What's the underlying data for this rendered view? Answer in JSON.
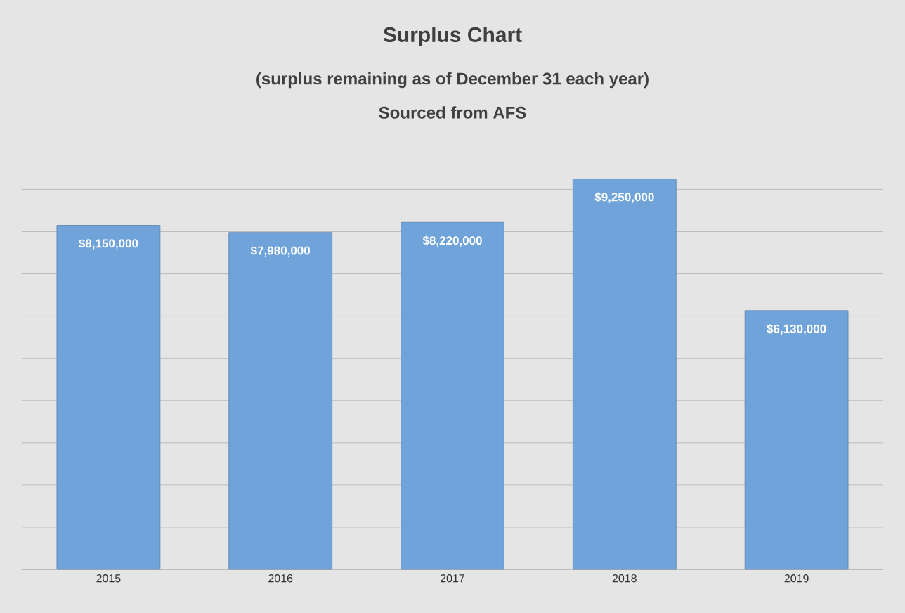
{
  "chart_data": {
    "type": "bar",
    "title": "Surplus Chart",
    "subtitle": "(surplus remaining as of December 31 each year)",
    "annotations": [
      "Sourced from AFS"
    ],
    "categories": [
      "2015",
      "2016",
      "2017",
      "2018",
      "2019"
    ],
    "values": [
      8150000,
      7980000,
      8220000,
      9250000,
      6130000
    ],
    "value_labels": [
      "$8,150,000",
      "$7,980,000",
      "$8,220,000",
      "$9,250,000",
      "$6,130,000"
    ],
    "color": "#6fa3d9",
    "grid": "y",
    "tick_labels": "x"
  }
}
